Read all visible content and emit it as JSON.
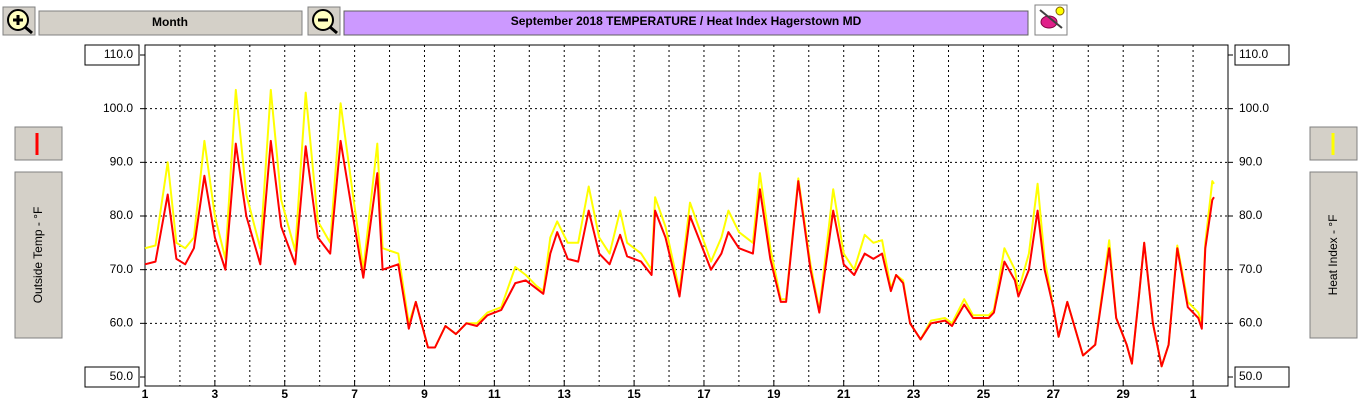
{
  "ui": {
    "range_button": "Month"
  },
  "chart_data": {
    "type": "line",
    "title": "September  2018    TEMPERATURE / Heat Index   Hagerstown MD",
    "y_label": "Outside Temp - °F",
    "y2_label": "Heat Index - °F",
    "xlim": [
      1,
      32
    ],
    "xticks": [
      1,
      3,
      5,
      7,
      9,
      11,
      13,
      15,
      17,
      19,
      21,
      23,
      25,
      27,
      29,
      {
        "value": 31,
        "label": "1"
      }
    ],
    "xminorticks": [
      2,
      4,
      6,
      8,
      10,
      12,
      14,
      16,
      18,
      20,
      22,
      24,
      26,
      28,
      30
    ],
    "ylim": [
      50,
      110
    ],
    "yticks": [
      {
        "value": 50,
        "label": "50.0"
      },
      {
        "value": 60,
        "label": "60.0"
      },
      {
        "value": 70,
        "label": "70.0"
      },
      {
        "value": 80,
        "label": "80.0"
      },
      {
        "value": 90,
        "label": "90.0"
      },
      {
        "value": 100,
        "label": "100.0"
      },
      {
        "value": 110,
        "label": "110.0"
      }
    ],
    "y2lim": [
      50,
      110
    ],
    "y2ticks": [
      {
        "value": 50,
        "label": "50.0"
      },
      {
        "value": 60,
        "label": "60.0"
      },
      {
        "value": 70,
        "label": "70.0"
      },
      {
        "value": 80,
        "label": "80.0"
      },
      {
        "value": 90,
        "label": "90.0"
      },
      {
        "value": 100,
        "label": "100.0"
      },
      {
        "value": 110,
        "label": "110.0"
      }
    ],
    "grid": true,
    "x": [
      1.0,
      1.3,
      1.65,
      1.9,
      2.15,
      2.4,
      2.7,
      3.0,
      3.3,
      3.6,
      3.9,
      4.3,
      4.6,
      4.9,
      5.3,
      5.6,
      5.95,
      6.3,
      6.6,
      6.95,
      7.25,
      7.65,
      7.8,
      8.25,
      8.55,
      8.75,
      9.1,
      9.3,
      9.6,
      9.9,
      10.2,
      10.5,
      10.8,
      11.2,
      11.6,
      11.9,
      12.2,
      12.4,
      12.6,
      12.8,
      13.1,
      13.4,
      13.7,
      14.0,
      14.3,
      14.6,
      14.8,
      15.2,
      15.5,
      15.6,
      15.9,
      16.3,
      16.6,
      16.9,
      17.2,
      17.5,
      17.7,
      18.0,
      18.4,
      18.6,
      18.9,
      19.2,
      19.35,
      19.7,
      20.05,
      20.3,
      20.7,
      21.0,
      21.3,
      21.6,
      21.85,
      22.1,
      22.35,
      22.5,
      22.7,
      22.9,
      23.2,
      23.5,
      23.9,
      24.1,
      24.45,
      24.7,
      25.15,
      25.3,
      25.6,
      25.9,
      26.0,
      26.3,
      26.55,
      26.75,
      27.0,
      27.15,
      27.4,
      27.85,
      28.2,
      28.6,
      28.8,
      29.1,
      29.25,
      29.45,
      29.6,
      29.85,
      30.1,
      30.3,
      30.55,
      30.85,
      31.15,
      31.25,
      31.35,
      31.55,
      31.6
    ],
    "series": [
      {
        "name": "Heat Index - °F",
        "color": "#ffff00",
        "axis": "y2",
        "values": [
          74,
          74.5,
          90,
          75,
          74,
          76,
          94,
          80,
          72,
          103.5,
          84,
          74,
          103.5,
          83,
          73.5,
          103,
          79,
          75,
          101,
          84,
          70,
          93.5,
          74,
          73,
          60,
          64,
          55.5,
          55.5,
          59.5,
          58,
          60,
          60,
          62,
          63,
          70.5,
          69,
          67,
          66,
          76,
          79,
          75,
          75,
          85.5,
          76,
          73,
          81,
          75,
          73,
          70,
          83.5,
          78,
          66,
          82.5,
          77,
          71.5,
          76,
          81,
          77,
          75,
          88,
          74,
          64.5,
          64.5,
          87,
          71,
          62.5,
          85,
          73,
          70,
          76.5,
          75,
          75.5,
          66.5,
          69,
          68,
          60,
          57,
          60.5,
          61,
          60,
          64.5,
          61.5,
          61.5,
          62.5,
          74,
          70,
          66,
          73,
          86,
          72,
          63,
          57.5,
          64,
          54,
          56,
          75.5,
          61,
          56,
          52.5,
          65,
          75,
          60,
          52,
          56,
          74.5,
          64,
          62,
          60,
          75,
          86.5,
          86
        ]
      },
      {
        "name": "Outside Temp - °F",
        "color": "#ff0000",
        "values": [
          71,
          71.5,
          84,
          72,
          71,
          74,
          87.5,
          76,
          70,
          93.5,
          80,
          71,
          94,
          78,
          71,
          93,
          76,
          73,
          94,
          80,
          68.5,
          88,
          70,
          71,
          59,
          64,
          55.5,
          55.5,
          59.5,
          58,
          60,
          59.5,
          61.5,
          62.5,
          67.5,
          68,
          66.5,
          65.5,
          73,
          77,
          72,
          71.5,
          81,
          73,
          71,
          76.5,
          72.5,
          71.5,
          69,
          81,
          76,
          65,
          80,
          75,
          70,
          73,
          77,
          74,
          73,
          85,
          72,
          64,
          64,
          86.5,
          70,
          62,
          81,
          71,
          69,
          73,
          72,
          73,
          66,
          69,
          67.5,
          60,
          57,
          60,
          60.5,
          59.5,
          63.5,
          61,
          61,
          62,
          71.5,
          68,
          65,
          70,
          81,
          70,
          63,
          57.5,
          64,
          54,
          56,
          74,
          61,
          56,
          52.5,
          65,
          75,
          60,
          52,
          56,
          74,
          63,
          61,
          59,
          74,
          83,
          83.5
        ]
      }
    ]
  }
}
